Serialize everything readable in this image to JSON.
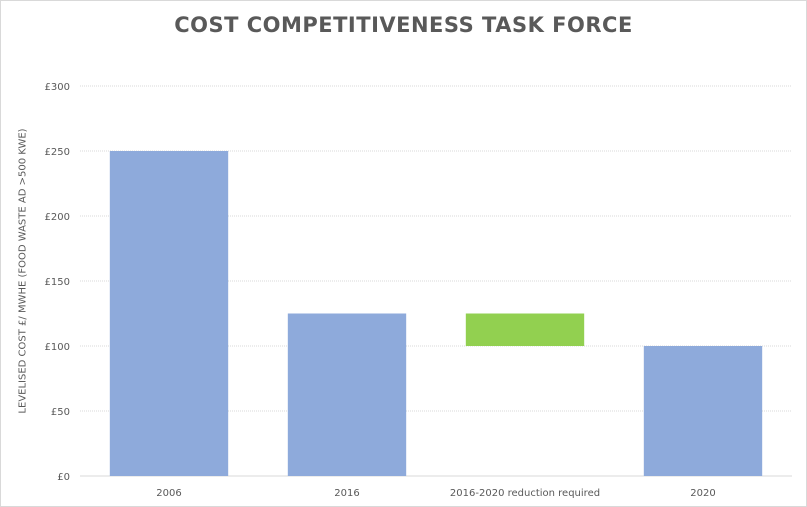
{
  "chart_data": {
    "type": "bar",
    "subtype": "waterfall",
    "title": "COST COMPETITIVENESS TASK FORCE",
    "xlabel": "",
    "ylabel": "LEVELISED COST £/ MWHE (FOOD WASTE AD >500 KWE)",
    "categories": [
      "2006",
      "2016",
      "2016-2020 reduction required",
      "2020"
    ],
    "bars": [
      {
        "category": "2006",
        "base": 0,
        "value": 250,
        "color": "#8eaadb"
      },
      {
        "category": "2016",
        "base": 0,
        "value": 125,
        "color": "#8eaadb"
      },
      {
        "category": "2016-2020 reduction required",
        "base": 100,
        "value": 25,
        "color": "#92d050"
      },
      {
        "category": "2020",
        "base": 0,
        "value": 100,
        "color": "#8eaadb"
      }
    ],
    "ylim": [
      0,
      300
    ],
    "yticks": [
      0,
      50,
      100,
      150,
      200,
      250,
      300
    ],
    "ytick_labels": [
      "£0",
      "£50",
      "£100",
      "£150",
      "£200",
      "£250",
      "£300"
    ],
    "grid": true,
    "legend": "none"
  }
}
